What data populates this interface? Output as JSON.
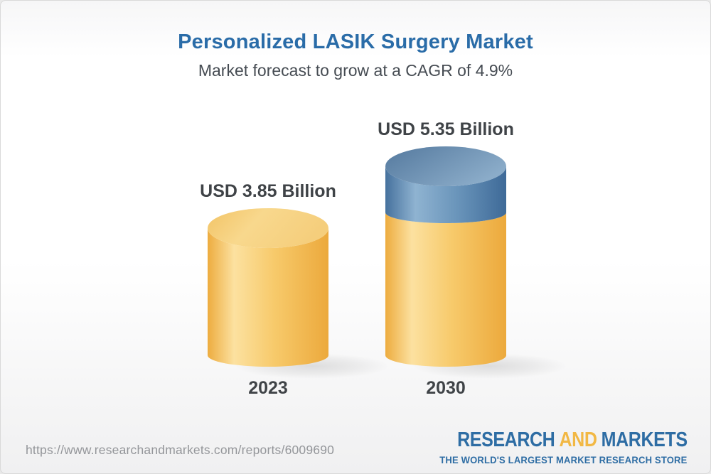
{
  "header": {
    "title": "Personalized LASIK Surgery Market",
    "subtitle": "Market forecast to grow at a CAGR of 4.9%"
  },
  "chart_data": {
    "type": "bar",
    "subtype": "3d-cylinder-columns",
    "title": "Personalized LASIK Surgery Market",
    "categories": [
      "2023",
      "2030"
    ],
    "values": [
      3.85,
      5.35
    ],
    "value_labels": [
      "USD 3.85 Billion",
      "USD 5.35 Billion"
    ],
    "unit": "USD Billion",
    "cagr_percent": 4.9,
    "baseline_value": 3.85,
    "growth_value": 1.5,
    "ylim": [
      0,
      5.35
    ],
    "grid": false,
    "legend": false,
    "colors": {
      "base_segment": "#F2BE58",
      "growth_segment": "#5C88B2",
      "label_text": "#3F4347",
      "title_text": "#2A6CA8"
    }
  },
  "footer": {
    "url": "https://www.researchandmarkets.com/reports/6009690",
    "logo": {
      "part1": "RESEARCH",
      "part2": "AND",
      "part3": "MARKETS",
      "tagline": "THE WORLD'S LARGEST MARKET RESEARCH STORE",
      "blue": "#2E6DA4",
      "yellow": "#F2B844"
    }
  }
}
